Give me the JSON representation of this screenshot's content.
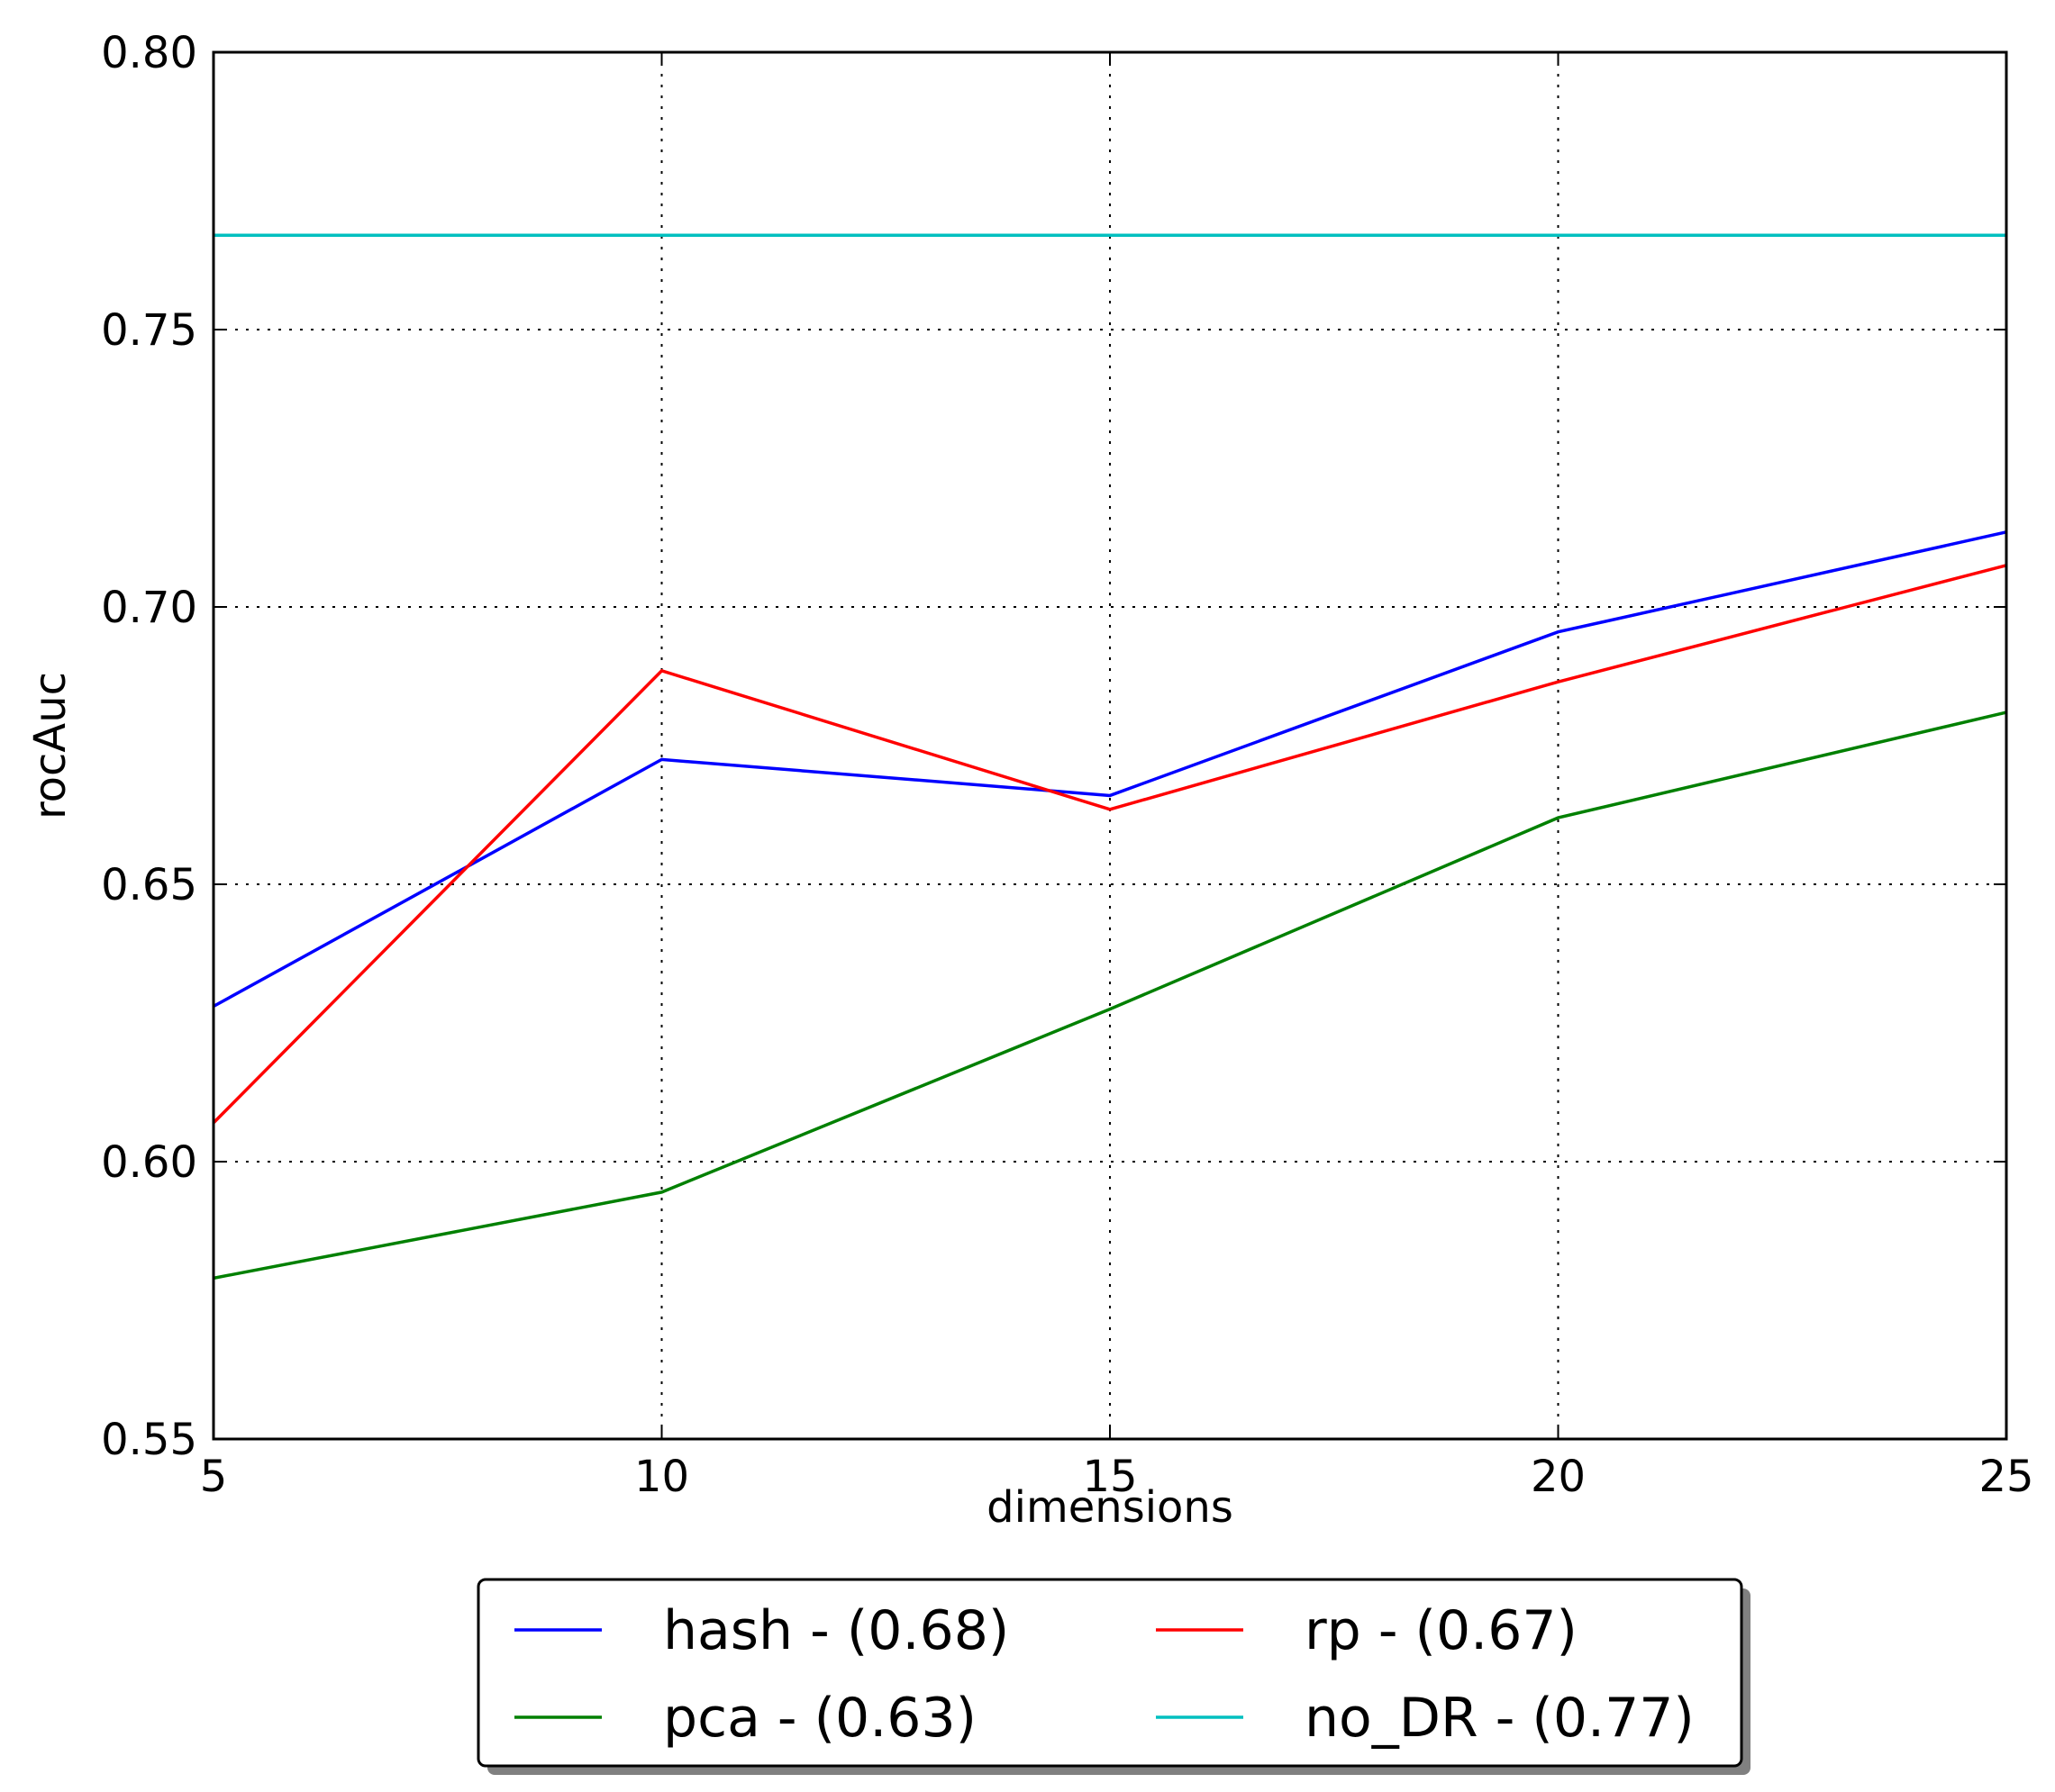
{
  "chart_data": {
    "type": "line",
    "title": "",
    "xlabel": "dimensions",
    "ylabel": "rocAuc",
    "x": [
      5,
      10,
      15,
      20,
      25
    ],
    "xlim": [
      5,
      25
    ],
    "ylim": [
      0.55,
      0.8
    ],
    "x_ticks": [
      "5",
      "10",
      "15",
      "20",
      "25"
    ],
    "y_ticks": [
      "0.55",
      "0.60",
      "0.65",
      "0.70",
      "0.75",
      "0.80"
    ],
    "grid": true,
    "legend_position": "bottom-center",
    "legend_columns": 2,
    "series": [
      {
        "name": "hash - (0.68)",
        "color": "#0000ff",
        "values": [
          0.628,
          0.6725,
          0.666,
          0.6955,
          0.7135
        ]
      },
      {
        "name": "rp - (0.67)",
        "color": "#ff0000",
        "values": [
          0.607,
          0.6885,
          0.6635,
          0.6865,
          0.7075
        ]
      },
      {
        "name": "pca - (0.63)",
        "color": "#008000",
        "values": [
          0.579,
          0.5945,
          0.6275,
          0.662,
          0.681
        ]
      },
      {
        "name": "no_DR - (0.77)",
        "color": "#00bfbf",
        "values": [
          0.767,
          0.767,
          0.767,
          0.767,
          0.767
        ]
      }
    ]
  }
}
